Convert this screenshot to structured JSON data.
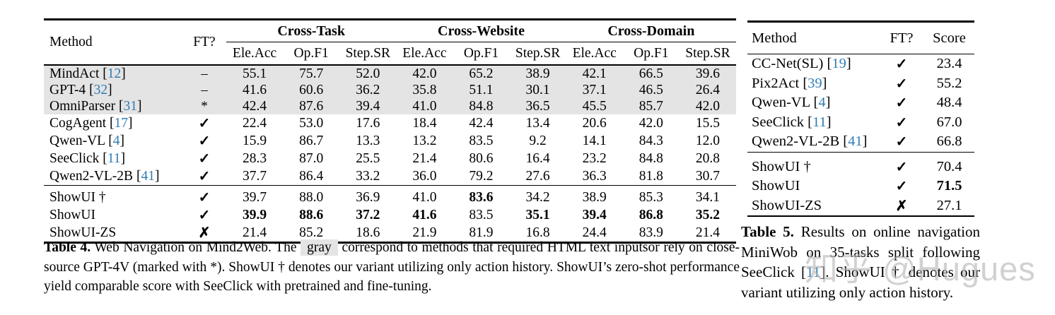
{
  "colors": {
    "citation_blue": "#2e7cb5",
    "row_highlight_gray": "#e4e4e4",
    "watermark_gray": "#b3b3b3"
  },
  "table4": {
    "headers": {
      "method": "Method",
      "ft": "FT?",
      "groups": [
        "Cross-Task",
        "Cross-Website",
        "Cross-Domain"
      ],
      "subcols": [
        "Ele.Acc",
        "Op.F1",
        "Step.SR"
      ]
    },
    "rows": [
      {
        "method": "MindAct",
        "cite": "12",
        "ft": "–",
        "highlight": true,
        "values": [
          "55.1",
          "75.7",
          "52.0",
          "42.0",
          "65.2",
          "38.9",
          "42.1",
          "66.5",
          "39.6"
        ],
        "bold": []
      },
      {
        "method": "GPT-4",
        "cite": "32",
        "ft": "–",
        "highlight": true,
        "values": [
          "41.6",
          "60.6",
          "36.2",
          "35.8",
          "51.1",
          "30.1",
          "37.1",
          "46.5",
          "26.4"
        ],
        "bold": []
      },
      {
        "method": "OmniParser",
        "cite": "31",
        "ft": "*",
        "highlight": true,
        "values": [
          "42.4",
          "87.6",
          "39.4",
          "41.0",
          "84.8",
          "36.5",
          "45.5",
          "85.7",
          "42.0"
        ],
        "bold": []
      },
      {
        "method": "CogAgent",
        "cite": "17",
        "ft": "✓",
        "values": [
          "22.4",
          "53.0",
          "17.6",
          "18.4",
          "42.4",
          "13.4",
          "20.6",
          "42.0",
          "15.5"
        ],
        "bold": []
      },
      {
        "method": "Qwen-VL",
        "cite": "4",
        "ft": "✓",
        "values": [
          "15.9",
          "86.7",
          "13.3",
          "13.2",
          "83.5",
          "9.2",
          "14.1",
          "84.3",
          "12.0"
        ],
        "bold": []
      },
      {
        "method": "SeeClick",
        "cite": "11",
        "ft": "✓",
        "values": [
          "28.3",
          "87.0",
          "25.5",
          "21.4",
          "80.6",
          "16.4",
          "23.2",
          "84.8",
          "20.8"
        ],
        "bold": []
      },
      {
        "method": "Qwen2-VL-2B",
        "cite": "41",
        "ft": "✓",
        "values": [
          "37.7",
          "86.4",
          "33.2",
          "36.0",
          "79.2",
          "27.6",
          "36.3",
          "81.8",
          "30.7"
        ],
        "bold": []
      },
      {
        "method": "ShowUI †",
        "cite": null,
        "ft": "✓",
        "rule_above": true,
        "values": [
          "39.7",
          "88.0",
          "36.9",
          "41.0",
          "83.6",
          "34.2",
          "38.9",
          "85.3",
          "34.1"
        ],
        "bold": [
          4
        ]
      },
      {
        "method": "ShowUI",
        "cite": null,
        "ft": "✓",
        "values": [
          "39.9",
          "88.6",
          "37.2",
          "41.6",
          "83.5",
          "35.1",
          "39.4",
          "86.8",
          "35.2"
        ],
        "bold": [
          0,
          1,
          2,
          3,
          5,
          6,
          7,
          8
        ]
      },
      {
        "method": "ShowUI-ZS",
        "cite": null,
        "ft": "✗",
        "values": [
          "21.4",
          "85.2",
          "18.6",
          "21.9",
          "81.9",
          "16.8",
          "24.4",
          "83.9",
          "21.4"
        ],
        "bold": []
      }
    ]
  },
  "table5": {
    "headers": {
      "method": "Method",
      "ft": "FT?",
      "score": "Score"
    },
    "rows": [
      {
        "method": "CC-Net(SL)",
        "cite": "19",
        "ft": "✓",
        "values": [
          "23.4"
        ],
        "bold": []
      },
      {
        "method": "Pix2Act",
        "cite": "39",
        "ft": "✓",
        "values": [
          "55.2"
        ],
        "bold": []
      },
      {
        "method": "Qwen-VL",
        "cite": "4",
        "ft": "✓",
        "values": [
          "48.4"
        ],
        "bold": []
      },
      {
        "method": "SeeClick",
        "cite": "11",
        "ft": "✓",
        "values": [
          "67.0"
        ],
        "bold": []
      },
      {
        "method": "Qwen2-VL-2B",
        "cite": "41",
        "ft": "✓",
        "values": [
          "66.8"
        ],
        "bold": []
      },
      {
        "method": "ShowUI †",
        "cite": null,
        "ft": "✓",
        "rule_above": true,
        "values": [
          "70.4"
        ],
        "bold": []
      },
      {
        "method": "ShowUI",
        "cite": null,
        "ft": "✓",
        "values": [
          "71.5"
        ],
        "bold": [
          0
        ]
      },
      {
        "method": "ShowUI-ZS",
        "cite": null,
        "ft": "✗",
        "values": [
          "27.1"
        ],
        "bold": []
      }
    ]
  },
  "captions": {
    "table4": {
      "segments": [
        {
          "t": "Table 4.",
          "s": "bold"
        },
        {
          "t": " Web Navigation on Mind2Web. The ",
          "s": "normal"
        },
        {
          "t": "gray",
          "s": "graybox"
        },
        {
          "t": " correspond to methods that required HTML text inputsor rely on close-source GPT-4V (marked with *). ShowUI † denotes our variant utilizing only action history. ShowUI’s zero-shot performance yield comparable score with SeeClick with pretrained and fine-tuning.",
          "s": "normal"
        }
      ]
    },
    "table5": {
      "segments": [
        {
          "t": "Table 5.",
          "s": "bold"
        },
        {
          "t": " Results on online navigation MiniWob on 35-tasks split following SeeClick [",
          "s": "normal"
        },
        {
          "t": "11",
          "s": "cite"
        },
        {
          "t": "]. ShowUI † denotes our variant utilizing only action history.",
          "s": "normal"
        }
      ]
    }
  },
  "watermark": {
    "text": "知乎 @Hugues"
  }
}
